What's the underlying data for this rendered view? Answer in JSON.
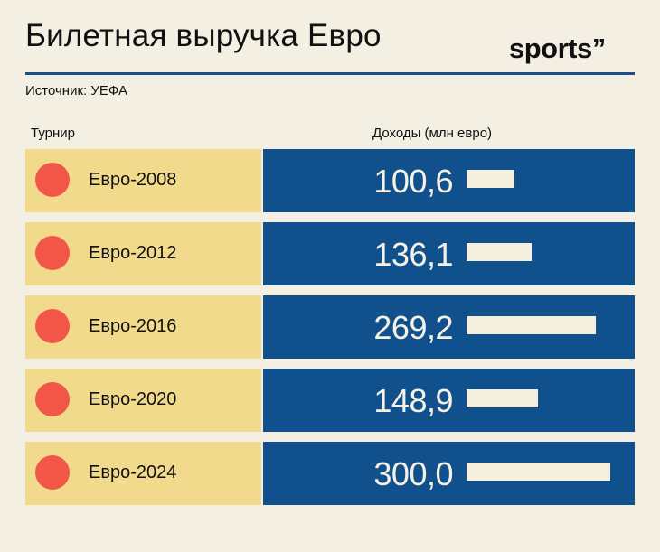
{
  "header": {
    "title": "Билетная выручка Евро",
    "logo": "sports”",
    "source": "Источник: УЕФА"
  },
  "table": {
    "col_tournament": "Турнир",
    "col_revenue": "Доходы (млн евро)"
  },
  "colors": {
    "accent_blue": "#10508d",
    "label_yellow": "#f2da8d",
    "dot_red": "#f25646",
    "background": "#f3efe3"
  },
  "chart_data": {
    "type": "bar",
    "categories": [
      "Евро-2008",
      "Евро-2012",
      "Евро-2016",
      "Евро-2020",
      "Евро-2024"
    ],
    "values": [
      100.6,
      136.1,
      269.2,
      148.9,
      300.0
    ],
    "value_labels": [
      "100,6",
      "136,1",
      "269,2",
      "148,9",
      "300,0"
    ],
    "title": "Билетная выручка Евро",
    "ylabel": "Доходы (млн евро)",
    "xlabel": "Турнир",
    "orientation": "horizontal",
    "ylim": [
      0,
      300
    ],
    "grid": false,
    "legend": "none"
  }
}
